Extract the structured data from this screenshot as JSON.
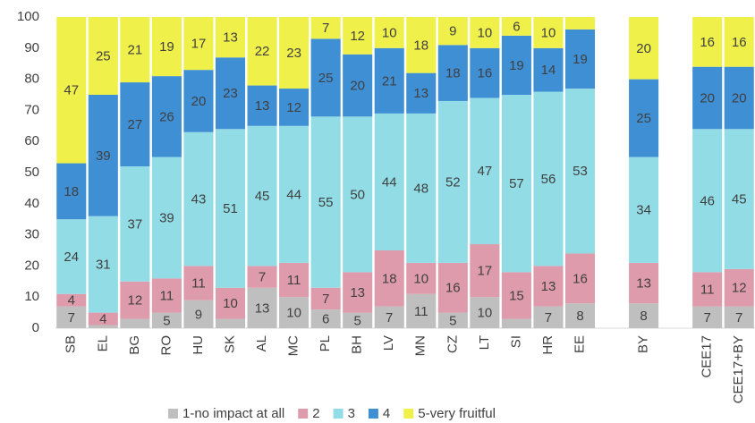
{
  "chart_data": {
    "type": "stacked_bar",
    "categories": [
      "SB",
      "EL",
      "BG",
      "RO",
      "HU",
      "SK",
      "AL",
      "MC",
      "PL",
      "BH",
      "LV",
      "MN",
      "CZ",
      "LT",
      "SI",
      "HR",
      "EE",
      null,
      "BY",
      null,
      "CEE17",
      "CEE17+BY"
    ],
    "series": [
      {
        "name": "1-no impact at all",
        "color": "#bfbfbf",
        "values": [
          7,
          1,
          3,
          5,
          9,
          3,
          13,
          10,
          6,
          5,
          7,
          11,
          5,
          10,
          3,
          7,
          8,
          null,
          8,
          null,
          7,
          7
        ],
        "value_labels": [
          "7",
          null,
          null,
          "5",
          "9",
          null,
          "13",
          "10",
          "6",
          "5",
          "7",
          "11",
          "5",
          "10",
          null,
          "7",
          "8",
          null,
          "8",
          null,
          "7",
          "7"
        ]
      },
      {
        "name": "2",
        "color": "#de9bab",
        "values": [
          4,
          4,
          12,
          11,
          11,
          10,
          7,
          11,
          7,
          13,
          18,
          10,
          16,
          17,
          15,
          13,
          16,
          null,
          13,
          null,
          11,
          12
        ],
        "value_labels": [
          "4",
          "4",
          "12",
          "11",
          "11",
          "10",
          "7",
          "11",
          "7",
          "13",
          "18",
          "10",
          "16",
          "17",
          "15",
          "13",
          "16",
          null,
          "13",
          null,
          "11",
          "12"
        ]
      },
      {
        "name": "3",
        "color": "#92dce6",
        "values": [
          24,
          31,
          37,
          39,
          43,
          51,
          45,
          44,
          55,
          50,
          44,
          48,
          52,
          47,
          57,
          56,
          53,
          null,
          34,
          null,
          46,
          45
        ],
        "value_labels": [
          "24",
          "31",
          "37",
          "39",
          "43",
          "51",
          "45",
          "44",
          "55",
          "50",
          "44",
          "48",
          "52",
          "47",
          "57",
          "56",
          "53",
          null,
          "34",
          null,
          "46",
          "45"
        ]
      },
      {
        "name": "4",
        "color": "#3f8fd5",
        "values": [
          18,
          39,
          27,
          26,
          20,
          23,
          13,
          12,
          25,
          20,
          21,
          13,
          18,
          16,
          19,
          14,
          19,
          null,
          25,
          null,
          20,
          20
        ],
        "value_labels": [
          "18",
          "39",
          "27",
          "26",
          "20",
          "23",
          "13",
          "12",
          "25",
          "20",
          "21",
          "13",
          "18",
          "16",
          "19",
          "14",
          "19",
          null,
          "25",
          null,
          "20",
          "20"
        ]
      },
      {
        "name": "5-very fruitful",
        "color": "#f0f04a",
        "values": [
          47,
          25,
          21,
          19,
          17,
          13,
          22,
          23,
          7,
          12,
          10,
          18,
          9,
          10,
          6,
          10,
          4,
          null,
          20,
          null,
          16,
          16
        ],
        "value_labels": [
          "47",
          "25",
          "21",
          "19",
          "17",
          "13",
          "22",
          "23",
          "7",
          "12",
          "10",
          "18",
          "9",
          "10",
          "6",
          "10",
          null,
          null,
          "20",
          null,
          "16",
          "16"
        ]
      }
    ],
    "ylim": [
      0,
      100
    ],
    "yticks": [
      0,
      10,
      20,
      30,
      40,
      50,
      60,
      70,
      80,
      90,
      100
    ]
  }
}
